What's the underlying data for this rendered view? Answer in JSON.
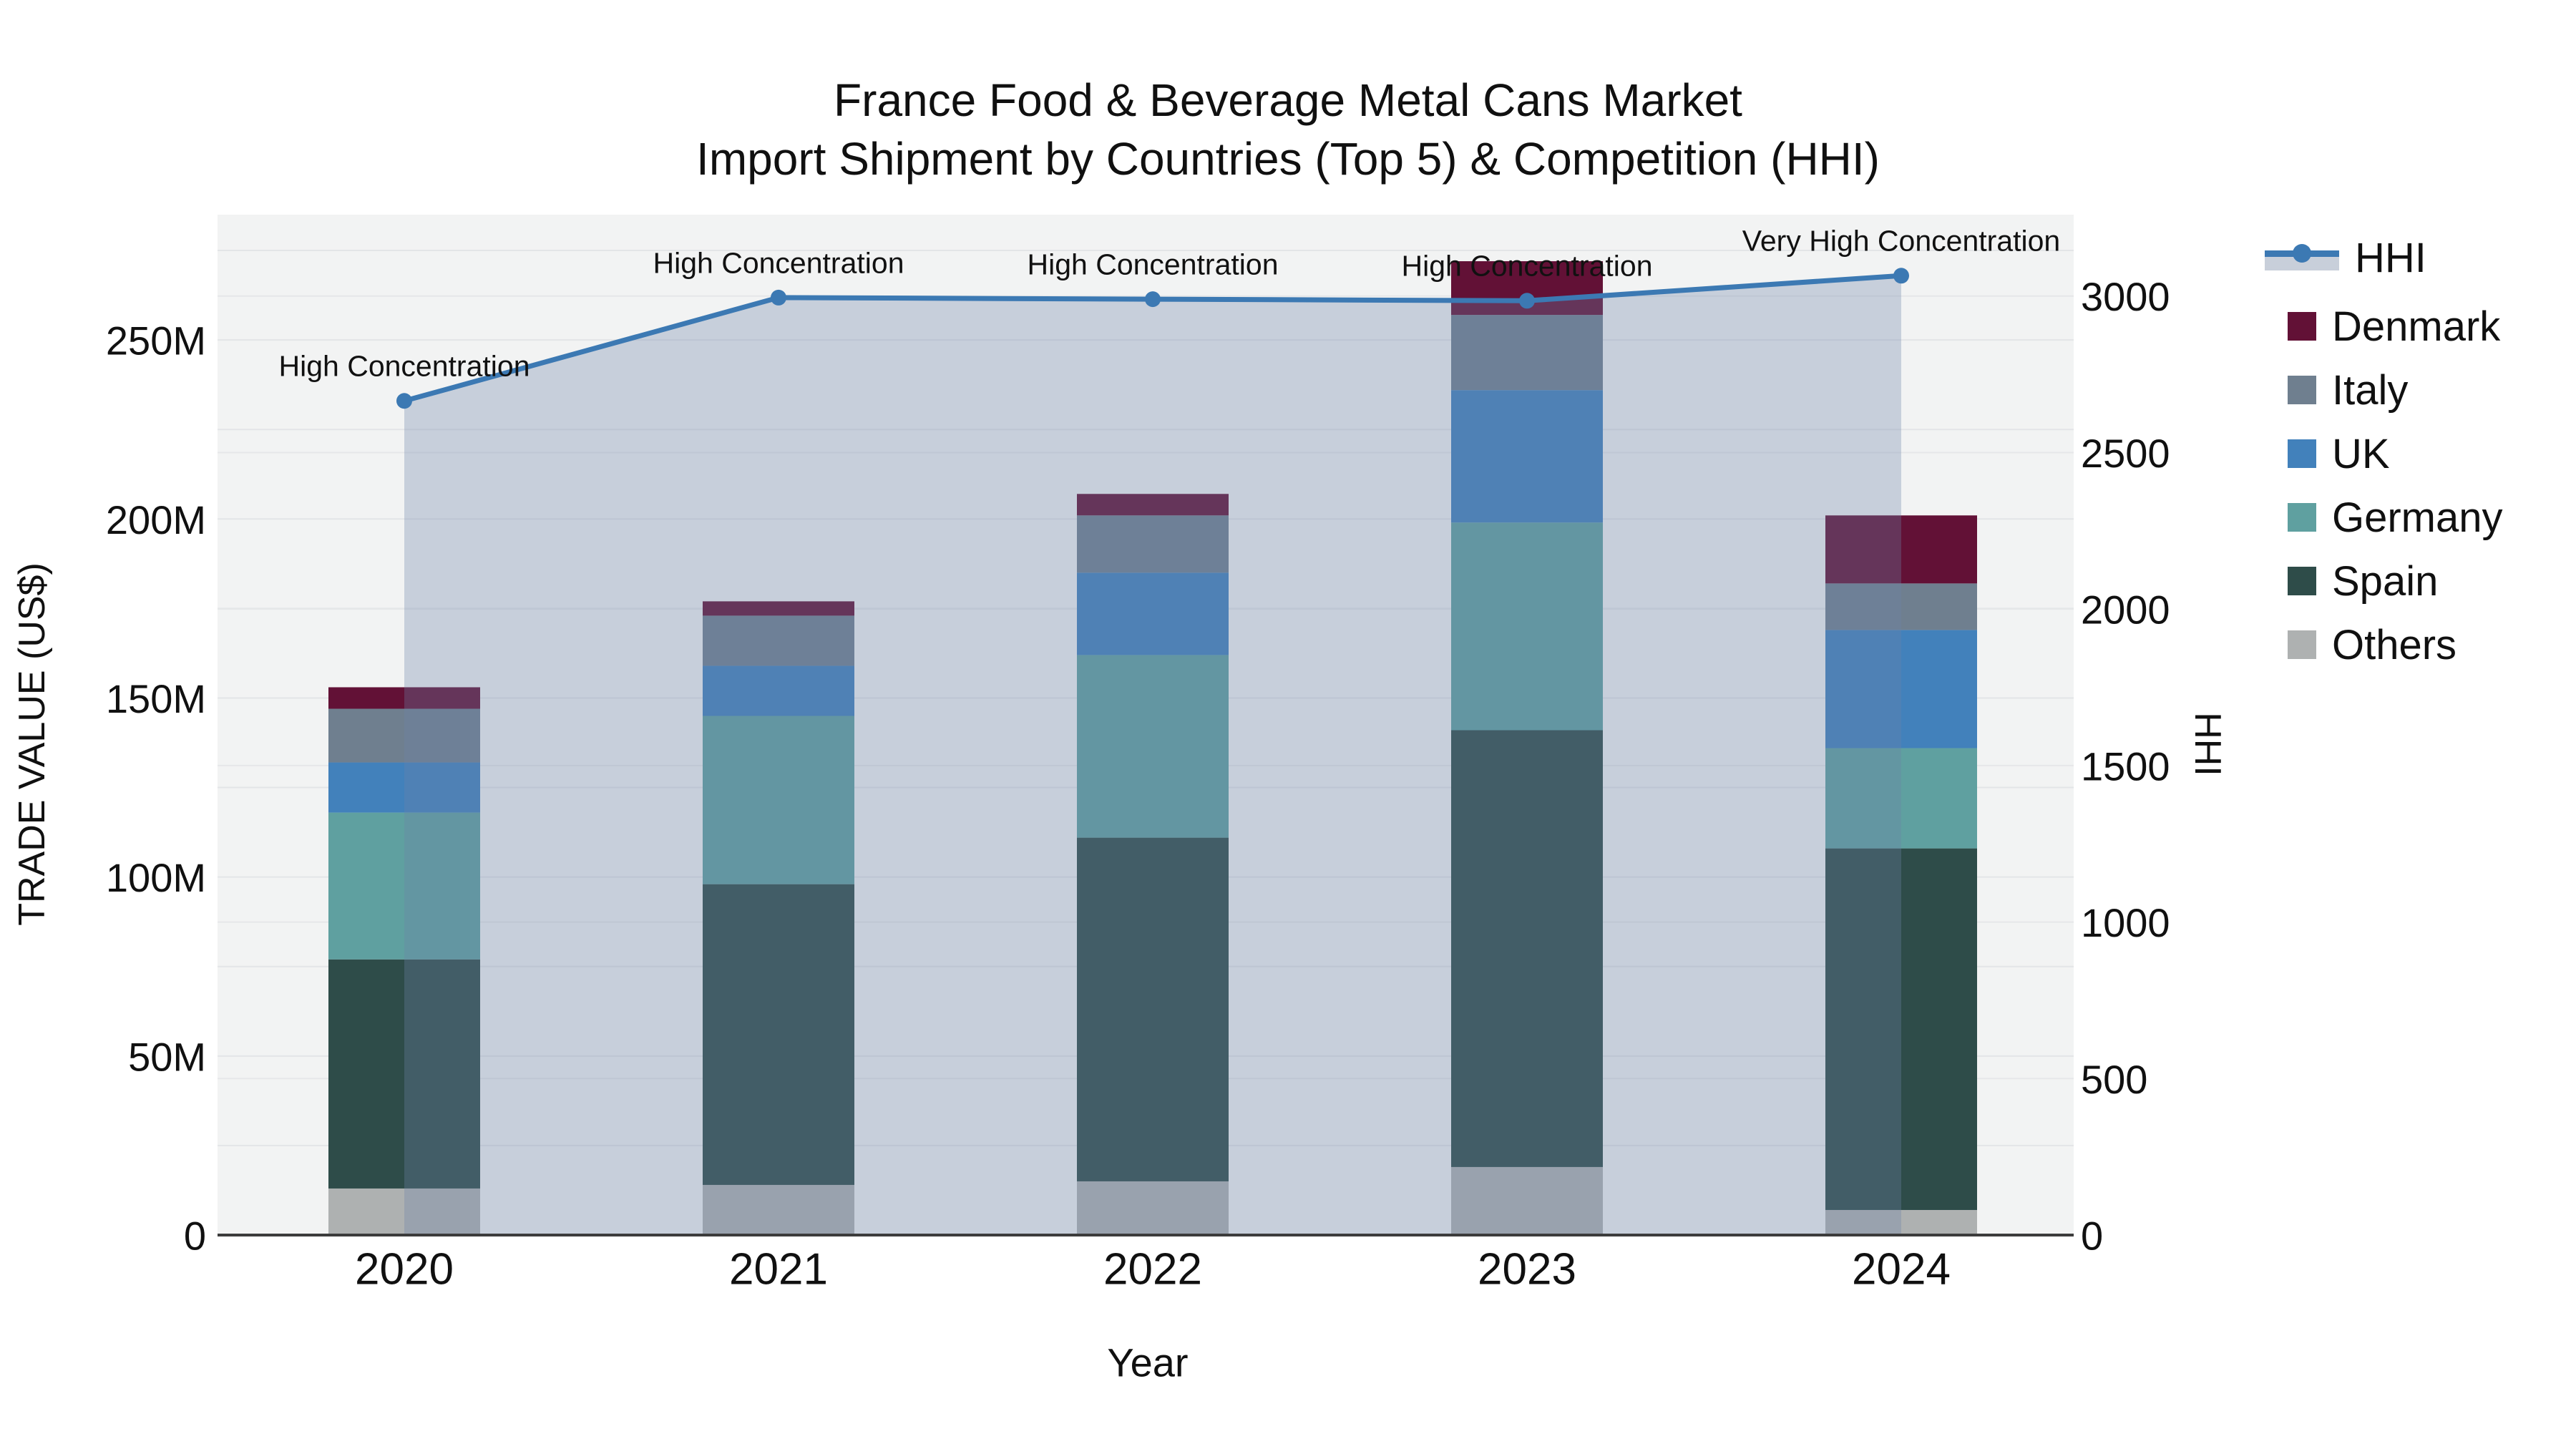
{
  "title": {
    "line1": "France Food & Beverage Metal Cans Market",
    "line2": "Import Shipment by Countries (Top 5) & Competition (HHI)"
  },
  "axes": {
    "x_title": "Year",
    "y_left_title": "TRADE VALUE (US$)",
    "y_right_title": "HHI",
    "y_left_ticks": [
      "0",
      "50M",
      "100M",
      "150M",
      "200M",
      "250M"
    ],
    "y_left_tick_values": [
      0,
      50,
      100,
      150,
      200,
      250
    ],
    "y_right_ticks": [
      "0",
      "500",
      "1000",
      "1500",
      "2000",
      "2500",
      "3000"
    ],
    "y_right_tick_values": [
      0,
      500,
      1000,
      1500,
      2000,
      2500,
      3000
    ]
  },
  "legend": {
    "items": [
      {
        "label": "HHI",
        "type": "line",
        "color": "#3c79b3"
      },
      {
        "label": "Denmark",
        "type": "swatch",
        "color": "#621136"
      },
      {
        "label": "Italy",
        "type": "swatch",
        "color": "#6f7f8f"
      },
      {
        "label": "UK",
        "type": "swatch",
        "color": "#4281bb"
      },
      {
        "label": "Germany",
        "type": "swatch",
        "color": "#5fa0a0"
      },
      {
        "label": "Spain",
        "type": "swatch",
        "color": "#2e4c49"
      },
      {
        "label": "Others",
        "type": "swatch",
        "color": "#aeb1b1"
      }
    ]
  },
  "annotations": [
    {
      "year": "2020",
      "text": "High Concentration"
    },
    {
      "year": "2021",
      "text": "High Concentration"
    },
    {
      "year": "2022",
      "text": "High Concentration"
    },
    {
      "year": "2023",
      "text": "High Concentration"
    },
    {
      "year": "2024",
      "text": "Very High Concentration"
    }
  ],
  "chart_data": {
    "type": "bar+line",
    "title": "France Food & Beverage Metal Cans Market — Import Shipment by Countries (Top 5) & Competition (HHI)",
    "categories": [
      "2020",
      "2021",
      "2022",
      "2023",
      "2024"
    ],
    "bar_value_unit": "M",
    "stack_order_bottom_to_top": [
      "Others",
      "Spain",
      "Germany",
      "UK",
      "Italy",
      "Denmark"
    ],
    "series": [
      {
        "name": "Others",
        "color": "#aeb1b1",
        "values": [
          13,
          14,
          15,
          19,
          7
        ]
      },
      {
        "name": "Spain",
        "color": "#2e4c49",
        "values": [
          64,
          84,
          96,
          122,
          101
        ]
      },
      {
        "name": "Germany",
        "color": "#5fa0a0",
        "values": [
          41,
          47,
          51,
          58,
          28
        ]
      },
      {
        "name": "UK",
        "color": "#4281bb",
        "values": [
          14,
          14,
          23,
          37,
          33
        ]
      },
      {
        "name": "Italy",
        "color": "#6f7f8f",
        "values": [
          15,
          14,
          16,
          21,
          13
        ]
      },
      {
        "name": "Denmark",
        "color": "#621136",
        "values": [
          6,
          4,
          6,
          15,
          19
        ]
      }
    ],
    "bar_totals": [
      153,
      177,
      207,
      272,
      201
    ],
    "hhi_line": {
      "name": "HHI",
      "color": "#3c79b3",
      "area_fill": "rgba(110,132,168,0.32)",
      "values": [
        2665,
        2995,
        2990,
        2985,
        3065
      ]
    },
    "ylim_left": [
      0,
      285
    ],
    "ylim_right": [
      0,
      3260
    ],
    "grid": true,
    "legend_position": "right"
  }
}
